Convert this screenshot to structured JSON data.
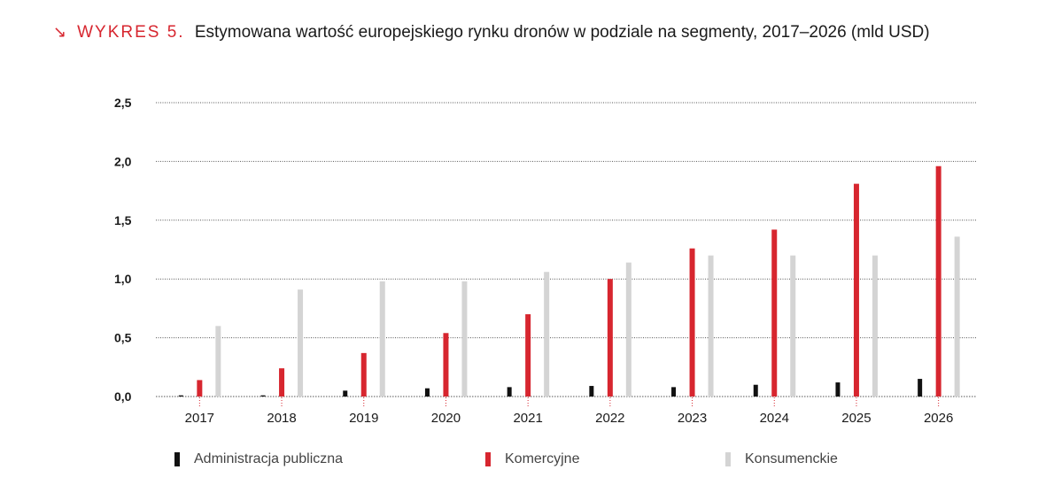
{
  "title": {
    "arrow": "↘",
    "label": "WYKRES 5.",
    "text": "Estymowana wartość europejskiego rynku dronów w podziale na segmenty, 2017–2026 (mld USD)"
  },
  "colors": {
    "admin": "#111111",
    "commercial": "#d7262f",
    "consumer": "#d4d4d4",
    "grid": "#555555",
    "accent": "#d7262f"
  },
  "chart_data": {
    "type": "bar",
    "categories": [
      "2017",
      "2018",
      "2019",
      "2020",
      "2021",
      "2022",
      "2023",
      "2024",
      "2025",
      "2026"
    ],
    "series": [
      {
        "name": "Administracja publiczna",
        "color": "#111111",
        "values": [
          0.01,
          0.01,
          0.05,
          0.07,
          0.08,
          0.09,
          0.08,
          0.1,
          0.12,
          0.15
        ]
      },
      {
        "name": "Komercyjne",
        "color": "#d7262f",
        "values": [
          0.14,
          0.24,
          0.37,
          0.54,
          0.7,
          1.0,
          1.26,
          1.42,
          1.81,
          1.96
        ]
      },
      {
        "name": "Konsumenckie",
        "color": "#d4d4d4",
        "values": [
          0.6,
          0.91,
          0.98,
          0.98,
          1.06,
          1.14,
          1.2,
          1.2,
          1.2,
          1.36
        ]
      }
    ],
    "yticks": [
      "0,0",
      "0,5",
      "1,0",
      "1,5",
      "2,0",
      "2,5"
    ],
    "ylim": [
      0,
      2.5
    ],
    "grid": true,
    "legend_position": "bottom"
  }
}
